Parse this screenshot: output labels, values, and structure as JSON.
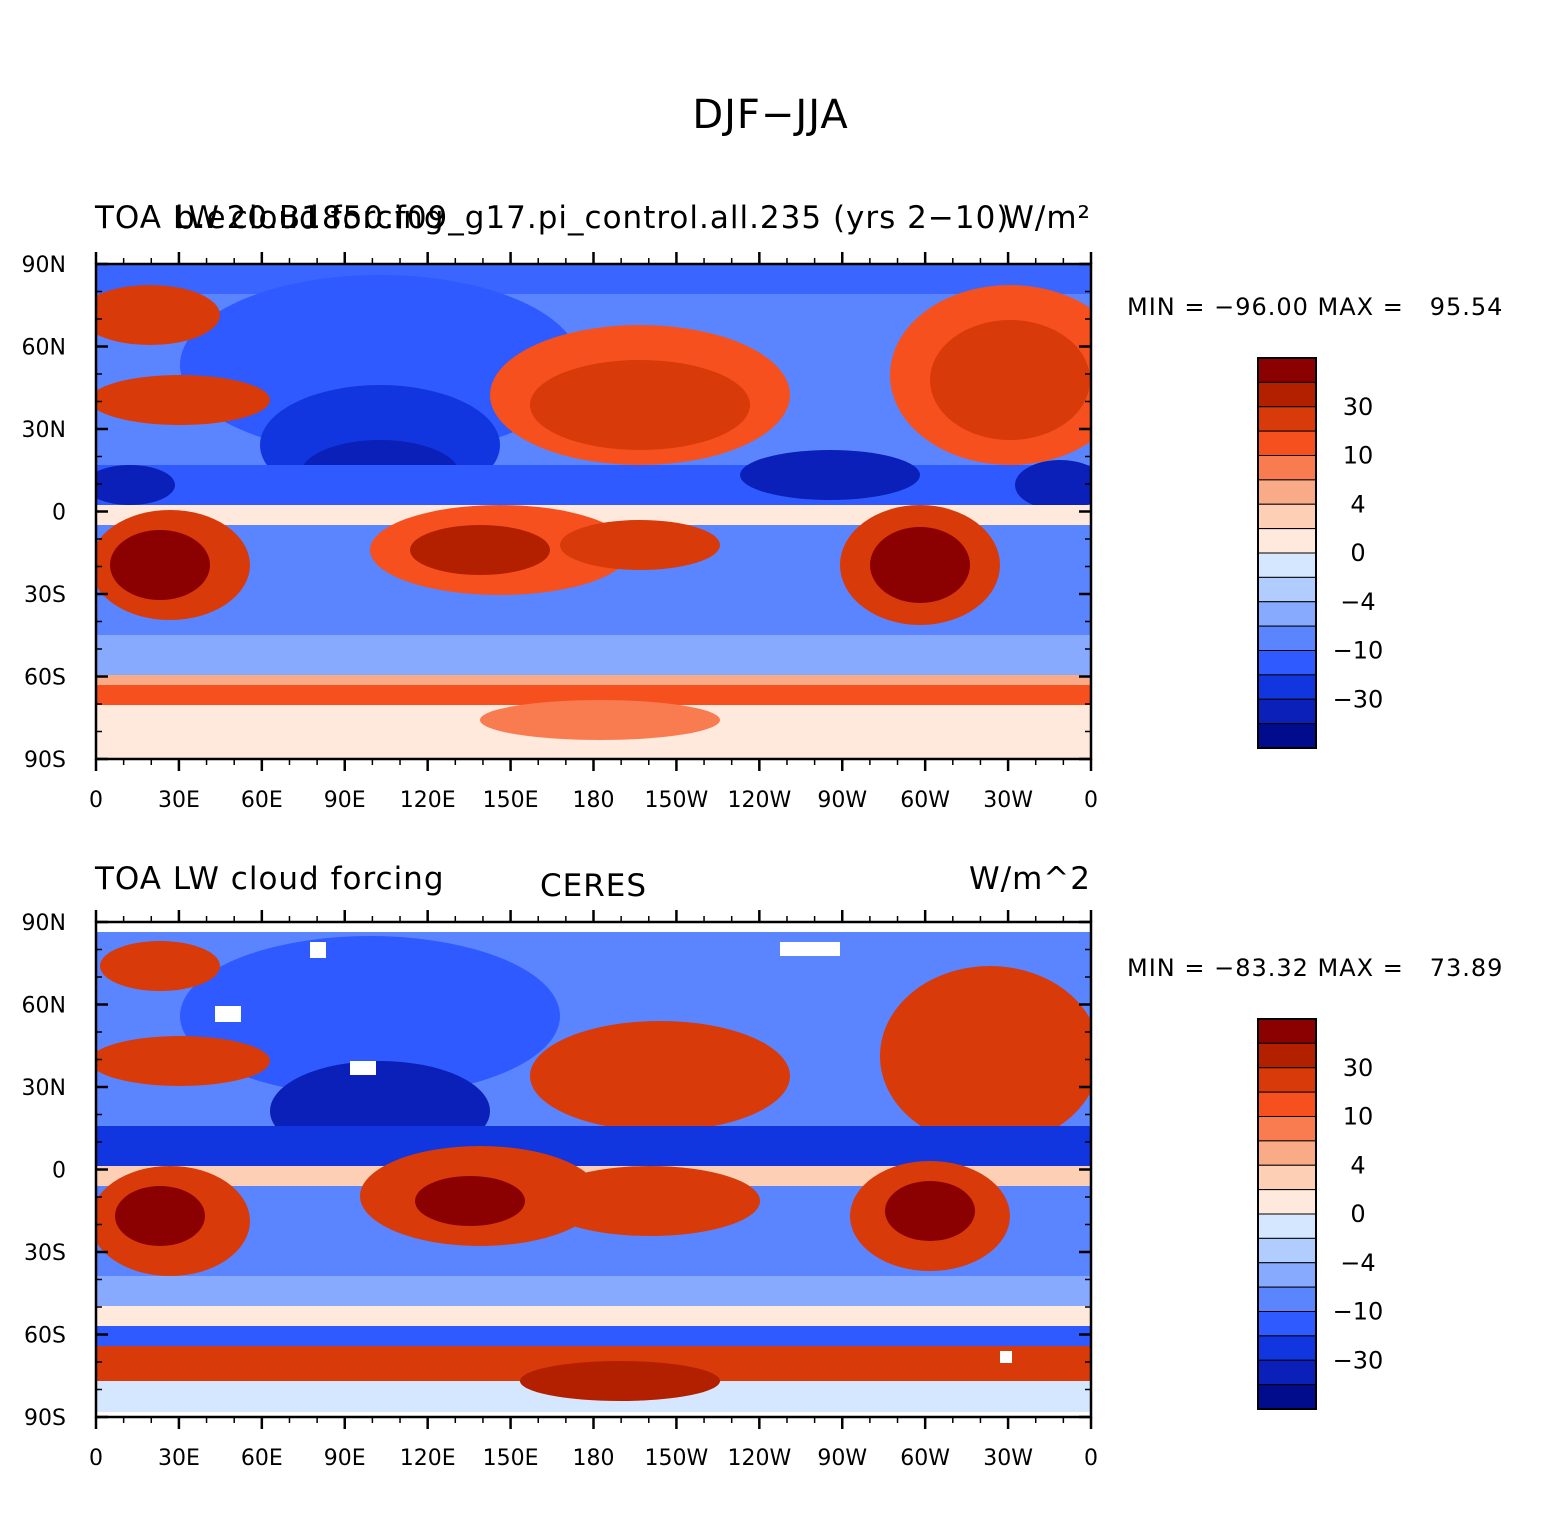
{
  "title": "DJF−JJA",
  "panels": [
    {
      "id": "top",
      "title_left": "TOA LW cloud forcing",
      "title_overlay": "b.e20.B1850.f09_g17.pi_control.all.235 (yrs 2−10)",
      "title_center": "",
      "units": "W/m²",
      "min_max": "MIN = −96.00 MAX =   95.54"
    },
    {
      "id": "bottom",
      "title_left": "TOA LW cloud forcing",
      "title_overlay": "",
      "title_center": "CERES",
      "units": "W/m^2",
      "min_max": "MIN = −83.32 MAX =   73.89"
    }
  ],
  "lat_labels": [
    "90N",
    "60N",
    "30N",
    "0",
    "30S",
    "60S",
    "90S"
  ],
  "lon_labels": [
    "0",
    "30E",
    "60E",
    "90E",
    "120E",
    "150E",
    "180",
    "150W",
    "120W",
    "90W",
    "60W",
    "30W",
    "0"
  ],
  "colorbar": {
    "colors": [
      "#8b0000",
      "#b22000",
      "#d83a0a",
      "#f5501e",
      "#f87c4f",
      "#f9aa86",
      "#fdd0b6",
      "#ffe9dd",
      "#d5e7ff",
      "#b1ccff",
      "#87aaff",
      "#5b85ff",
      "#2f5aff",
      "#1136e0",
      "#0a20b8",
      "#000c8c"
    ],
    "labels": [
      "30",
      "10",
      "4",
      "0",
      "−4",
      "−10",
      "−30"
    ]
  }
}
